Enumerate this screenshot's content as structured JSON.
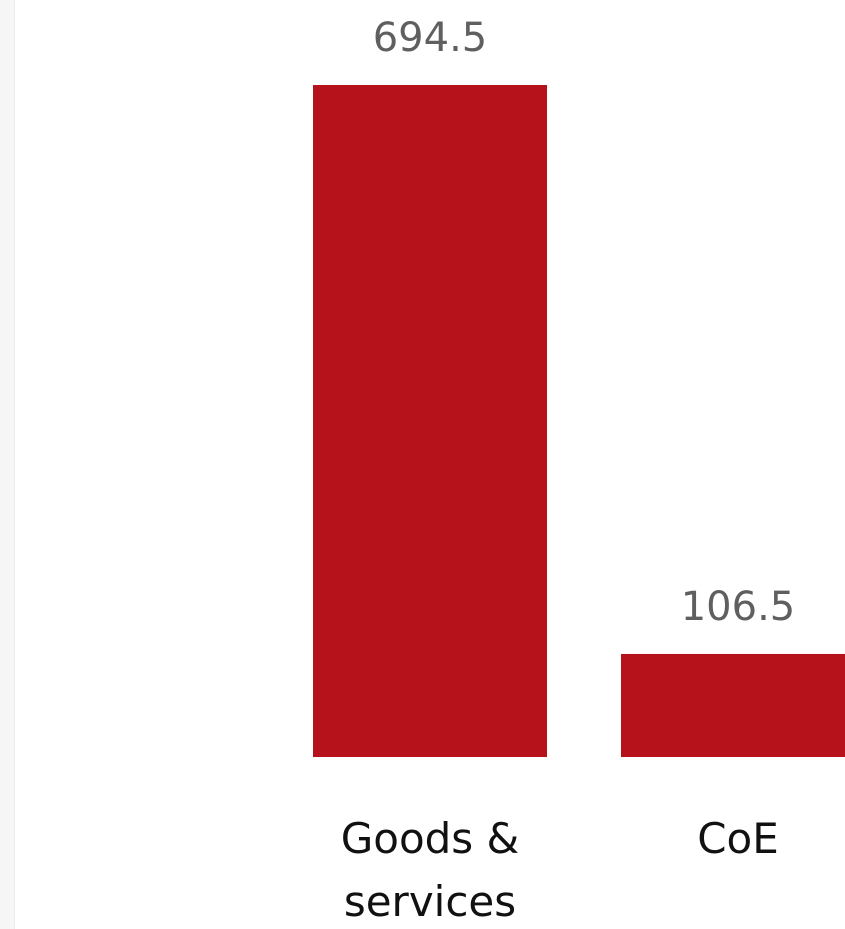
{
  "chart_data": {
    "type": "bar",
    "categories": [
      [
        "Goods &",
        "services"
      ],
      [
        "CoE"
      ]
    ],
    "values": [
      694.5,
      106.5
    ],
    "value_labels": [
      "694.5",
      "106.5"
    ],
    "bar_color": "#b5121b",
    "grid": false,
    "legend": "none"
  }
}
